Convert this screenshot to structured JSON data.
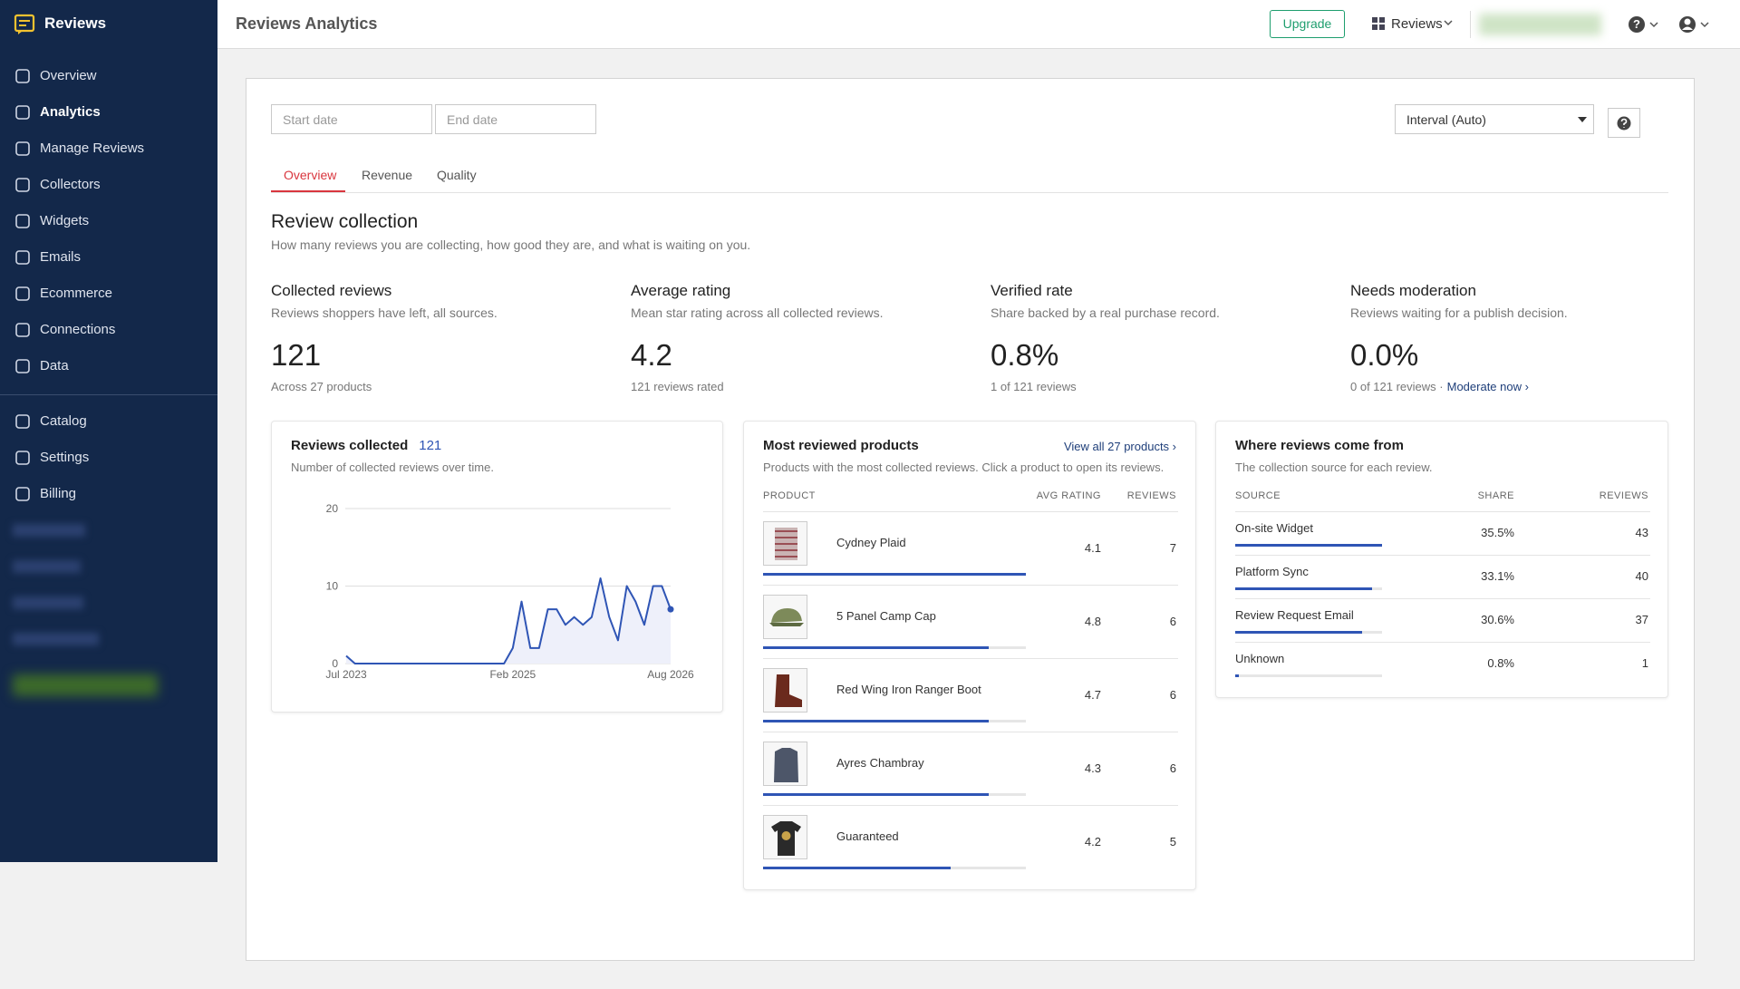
{
  "sidebar": {
    "brand": "Reviews",
    "nav": [
      "Overview",
      "Analytics",
      "Manage Reviews",
      "Collectors",
      "Widgets",
      "Emails",
      "Ecommerce",
      "Connections",
      "Data"
    ],
    "active": "Analytics",
    "nav2": [
      "Catalog",
      "Settings",
      "Billing"
    ]
  },
  "header": {
    "title": "Reviews Analytics",
    "upgrade": "Upgrade",
    "workspace": "Reviews"
  },
  "filters": {
    "start_date": "Start date",
    "end_date": "End date",
    "interval": "Interval (Auto)"
  },
  "tabs": [
    "Overview",
    "Revenue",
    "Quality"
  ],
  "active_tab": "Overview",
  "section": {
    "title": "Review collection",
    "subtitle": "How many reviews you are collecting, how good they are, and what is waiting on you."
  },
  "kpis": [
    {
      "label": "Collected reviews",
      "description": "Reviews shoppers have left, all sources.",
      "value": "121",
      "note": "Across 27 products"
    },
    {
      "label": "Average rating",
      "description": "Mean star rating across all collected reviews.",
      "value": "4.2",
      "note": "121 reviews rated"
    },
    {
      "label": "Verified rate",
      "description": "Share backed by a real purchase record.",
      "value": "0.8%",
      "note": "1 of 121 reviews"
    },
    {
      "label": "Needs moderation",
      "description": "Reviews waiting for a publish decision.",
      "value": "0.0%",
      "note": "0 of 121 reviews ·",
      "link": "Moderate now ›"
    }
  ],
  "chart_data": {
    "type": "line",
    "title": "Reviews collected",
    "total": 121,
    "subtitle": "Number of collected reviews over time.",
    "categories": [
      "Jul 2023",
      null,
      null,
      null,
      null,
      null,
      null,
      null,
      null,
      null,
      null,
      null,
      null,
      null,
      null,
      null,
      null,
      null,
      null,
      "Feb 2025",
      null,
      null,
      null,
      null,
      null,
      null,
      null,
      null,
      null,
      null,
      null,
      null,
      null,
      null,
      null,
      null,
      null,
      "Aug 2026"
    ],
    "values": [
      1,
      0,
      0,
      0,
      0,
      0,
      0,
      0,
      0,
      0,
      0,
      0,
      0,
      0,
      0,
      0,
      0,
      0,
      0,
      2,
      8,
      2,
      2,
      7,
      7,
      5,
      6,
      5,
      6,
      11,
      6,
      3,
      10,
      8,
      5,
      10,
      10,
      7
    ],
    "color": "#2f55b5",
    "ylim": [
      0,
      20
    ],
    "yticks": [
      0,
      10,
      20
    ],
    "grid": true
  },
  "products_card": {
    "title": "Most reviewed products",
    "link": "View all 27 products ›",
    "subtitle": "Products with the most collected reviews. Click a product to open its reviews.",
    "columns": [
      "PRODUCT",
      "AVG RATING",
      "REVIEWS"
    ],
    "rows": [
      {
        "name": "Cydney Plaid",
        "avg_rating": 4.1,
        "reviews": 7
      },
      {
        "name": "5 Panel Camp Cap",
        "avg_rating": 4.8,
        "reviews": 6
      },
      {
        "name": "Red Wing Iron Ranger Boot",
        "avg_rating": 4.7,
        "reviews": 6
      },
      {
        "name": "Ayres Chambray",
        "avg_rating": 4.3,
        "reviews": 6
      },
      {
        "name": "Guaranteed",
        "avg_rating": 4.2,
        "reviews": 5
      }
    ]
  },
  "sources_card": {
    "title": "Where reviews come from",
    "subtitle": "The collection source for each review.",
    "columns": [
      "SOURCE",
      "SHARE",
      "REVIEWS"
    ],
    "rows": [
      {
        "name": "On-site Widget",
        "share": {
          "value": 35.5,
          "label": "35.5%"
        },
        "reviews": 43
      },
      {
        "name": "Platform Sync",
        "share": {
          "value": 33.1,
          "label": "33.1%"
        },
        "reviews": 40
      },
      {
        "name": "Review Request Email",
        "share": {
          "value": 30.6,
          "label": "30.6%"
        },
        "reviews": 37
      },
      {
        "name": "Unknown",
        "share": {
          "value": 0.8,
          "label": "0.8%"
        },
        "reviews": 1
      }
    ]
  }
}
